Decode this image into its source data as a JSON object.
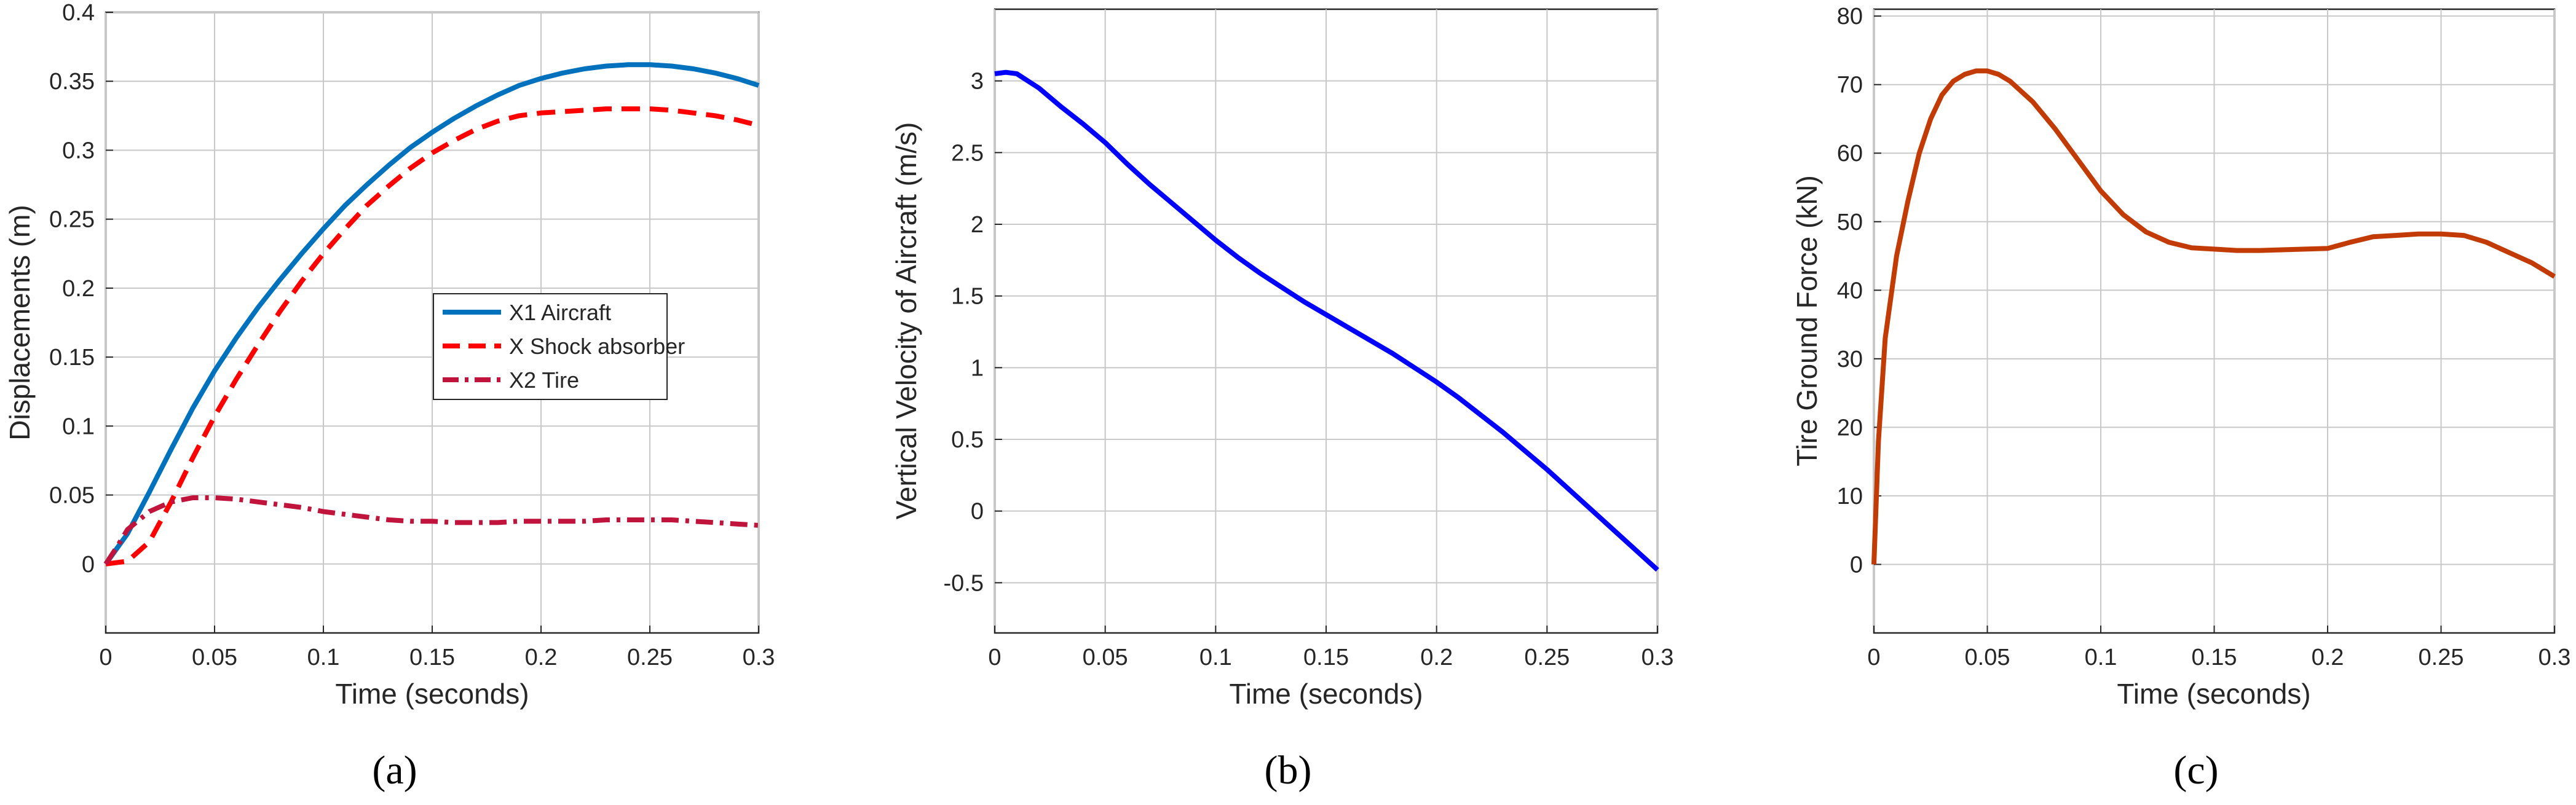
{
  "figure": {
    "panel_labels": [
      "(a)",
      "(b)",
      "(c)"
    ]
  },
  "chart_data": [
    {
      "type": "line",
      "panel": "(a)",
      "xlabel": "Time (seconds)",
      "ylabel": "Displacements (m)",
      "xlim": [
        0,
        0.3
      ],
      "ylim": [
        -0.05,
        0.4
      ],
      "xticks": [
        0,
        0.05,
        0.1,
        0.15,
        0.2,
        0.25,
        0.3
      ],
      "xticklabels": [
        "0",
        "0.05",
        "0.1",
        "0.15",
        "0.2",
        "0.25",
        "0.3"
      ],
      "yticks": [
        0,
        0.05,
        0.1,
        0.15,
        0.2,
        0.25,
        0.3,
        0.35,
        0.4
      ],
      "yticklabels": [
        "0",
        "0.05",
        "0.1",
        "0.15",
        "0.2",
        "0.25",
        "0.3",
        "0.35",
        "0.4"
      ],
      "grid": true,
      "legend": "center-right",
      "series": [
        {
          "name": "X1 Aircraft",
          "color": "#0072BD",
          "style": "solid",
          "x": [
            0,
            0.01,
            0.02,
            0.03,
            0.04,
            0.05,
            0.06,
            0.07,
            0.08,
            0.09,
            0.1,
            0.11,
            0.12,
            0.13,
            0.14,
            0.15,
            0.16,
            0.17,
            0.18,
            0.19,
            0.2,
            0.21,
            0.22,
            0.23,
            0.24,
            0.25,
            0.26,
            0.27,
            0.28,
            0.29,
            0.3
          ],
          "y": [
            0,
            0.022,
            0.052,
            0.083,
            0.113,
            0.14,
            0.164,
            0.186,
            0.206,
            0.225,
            0.243,
            0.26,
            0.275,
            0.289,
            0.302,
            0.313,
            0.323,
            0.332,
            0.34,
            0.347,
            0.352,
            0.356,
            0.359,
            0.361,
            0.362,
            0.362,
            0.361,
            0.359,
            0.356,
            0.352,
            0.347
          ]
        },
        {
          "name": "X Shock absorber",
          "color": "#FF0000",
          "style": "dashed",
          "x": [
            0,
            0.01,
            0.02,
            0.03,
            0.04,
            0.05,
            0.06,
            0.07,
            0.08,
            0.09,
            0.1,
            0.11,
            0.12,
            0.13,
            0.14,
            0.15,
            0.16,
            0.17,
            0.18,
            0.19,
            0.2,
            0.21,
            0.22,
            0.23,
            0.24,
            0.25,
            0.26,
            0.27,
            0.28,
            0.29,
            0.3
          ],
          "y": [
            0,
            0.002,
            0.016,
            0.045,
            0.077,
            0.107,
            0.134,
            0.159,
            0.183,
            0.205,
            0.225,
            0.243,
            0.26,
            0.274,
            0.287,
            0.298,
            0.307,
            0.315,
            0.321,
            0.325,
            0.327,
            0.328,
            0.329,
            0.33,
            0.33,
            0.33,
            0.329,
            0.327,
            0.325,
            0.322,
            0.318
          ]
        },
        {
          "name": "X2 Tire",
          "color": "#C0143C",
          "style": "dashdot",
          "x": [
            0,
            0.005,
            0.01,
            0.02,
            0.03,
            0.04,
            0.05,
            0.06,
            0.07,
            0.08,
            0.09,
            0.1,
            0.11,
            0.12,
            0.13,
            0.14,
            0.15,
            0.16,
            0.17,
            0.18,
            0.19,
            0.2,
            0.21,
            0.22,
            0.23,
            0.24,
            0.25,
            0.26,
            0.27,
            0.28,
            0.29,
            0.3
          ],
          "y": [
            0,
            0.012,
            0.025,
            0.038,
            0.045,
            0.048,
            0.048,
            0.047,
            0.045,
            0.043,
            0.041,
            0.038,
            0.036,
            0.034,
            0.032,
            0.031,
            0.031,
            0.03,
            0.03,
            0.03,
            0.031,
            0.031,
            0.031,
            0.031,
            0.032,
            0.032,
            0.032,
            0.032,
            0.031,
            0.03,
            0.029,
            0.028
          ]
        }
      ]
    },
    {
      "type": "line",
      "panel": "(b)",
      "xlabel": "Time (seconds)",
      "ylabel": "Vertical Velocity of Aircraft (m/s)",
      "xlim": [
        0,
        0.3
      ],
      "ylim": [
        -0.85,
        3.5
      ],
      "xticks": [
        0,
        0.05,
        0.1,
        0.15,
        0.2,
        0.25,
        0.3
      ],
      "xticklabels": [
        "0",
        "0.05",
        "0.1",
        "0.15",
        "0.2",
        "0.25",
        "0.3"
      ],
      "yticks": [
        -0.5,
        0,
        0.5,
        1,
        1.5,
        2,
        2.5,
        3
      ],
      "yticklabels": [
        "-0.5",
        "0",
        "0.5",
        "1",
        "1.5",
        "2",
        "2.5",
        "3"
      ],
      "grid": true,
      "series": [
        {
          "color": "#0000FF",
          "style": "solid",
          "x": [
            0,
            0.005,
            0.01,
            0.015,
            0.02,
            0.03,
            0.04,
            0.05,
            0.06,
            0.07,
            0.08,
            0.09,
            0.1,
            0.11,
            0.12,
            0.13,
            0.14,
            0.15,
            0.16,
            0.17,
            0.18,
            0.19,
            0.2,
            0.21,
            0.22,
            0.23,
            0.24,
            0.25,
            0.26,
            0.27,
            0.28,
            0.29,
            0.3
          ],
          "y": [
            3.05,
            3.06,
            3.05,
            3.0,
            2.95,
            2.82,
            2.7,
            2.57,
            2.42,
            2.28,
            2.15,
            2.02,
            1.89,
            1.77,
            1.66,
            1.56,
            1.46,
            1.37,
            1.28,
            1.19,
            1.1,
            1.0,
            0.9,
            0.79,
            0.67,
            0.55,
            0.42,
            0.29,
            0.15,
            0.01,
            -0.13,
            -0.27,
            -0.41
          ]
        }
      ]
    },
    {
      "type": "line",
      "panel": "(c)",
      "xlabel": "Time (seconds)",
      "ylabel": "Tire Ground Force (kN)",
      "xlim": [
        0,
        0.3
      ],
      "ylim": [
        -10,
        81
      ],
      "xticks": [
        0,
        0.05,
        0.1,
        0.15,
        0.2,
        0.25,
        0.3
      ],
      "xticklabels": [
        "0",
        "0.05",
        "0.1",
        "0.15",
        "0.2",
        "0.25",
        "0.3"
      ],
      "yticks": [
        0,
        10,
        20,
        30,
        40,
        50,
        60,
        70,
        80
      ],
      "yticklabels": [
        "0",
        "10",
        "20",
        "30",
        "40",
        "50",
        "60",
        "70",
        "80"
      ],
      "grid": true,
      "series": [
        {
          "color": "#C23B05",
          "style": "solid",
          "x": [
            0,
            0.002,
            0.005,
            0.01,
            0.015,
            0.02,
            0.025,
            0.03,
            0.035,
            0.04,
            0.045,
            0.05,
            0.055,
            0.06,
            0.07,
            0.08,
            0.09,
            0.1,
            0.11,
            0.12,
            0.13,
            0.14,
            0.15,
            0.16,
            0.17,
            0.18,
            0.19,
            0.2,
            0.21,
            0.22,
            0.23,
            0.24,
            0.25,
            0.26,
            0.27,
            0.28,
            0.29,
            0.3
          ],
          "y": [
            0,
            18,
            33,
            45,
            53,
            60,
            65,
            68.5,
            70.5,
            71.5,
            72,
            72,
            71.5,
            70.5,
            67.5,
            63.5,
            59,
            54.5,
            51,
            48.5,
            47,
            46.2,
            46,
            45.8,
            45.8,
            45.9,
            46,
            46.1,
            47,
            47.8,
            48,
            48.2,
            48.2,
            48,
            47,
            45.5,
            44,
            42
          ]
        }
      ]
    }
  ]
}
